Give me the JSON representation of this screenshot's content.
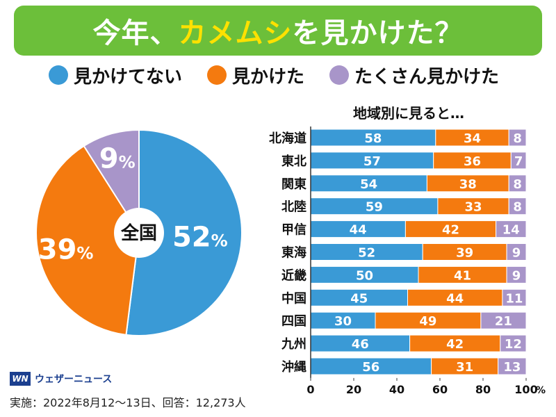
{
  "title": {
    "part1": "今年、",
    "highlight": "カメムシ",
    "part2": "を見かけた？"
  },
  "colors": {
    "not_seen": "#3a9ad6",
    "seen": "#f47a0f",
    "seen_a_lot": "#a895c9",
    "banner": "#6cbf3a",
    "highlight": "#ffe100"
  },
  "legend": [
    {
      "label": "見かけてない",
      "color": "#3a9ad6"
    },
    {
      "label": "見かけた",
      "color": "#f47a0f"
    },
    {
      "label": "たくさん見かけた",
      "color": "#a895c9"
    }
  ],
  "chart_data": [
    {
      "type": "pie",
      "center_label": "全国",
      "labels": [
        "見かけてない",
        "見かけた",
        "たくさん見かけた"
      ],
      "values": [
        52,
        39,
        9
      ],
      "value_labels": [
        "52",
        "39",
        "9"
      ],
      "unit": "%"
    },
    {
      "type": "bar",
      "orientation": "horizontal",
      "stacked": true,
      "title": "地域別に見ると…",
      "categories": [
        "北海道",
        "東北",
        "関東",
        "北陸",
        "甲信",
        "東海",
        "近畿",
        "中国",
        "四国",
        "九州",
        "沖縄"
      ],
      "series": [
        {
          "name": "見かけてない",
          "values": [
            58,
            57,
            54,
            59,
            44,
            52,
            50,
            45,
            30,
            46,
            56
          ]
        },
        {
          "name": "見かけた",
          "values": [
            34,
            36,
            38,
            33,
            42,
            39,
            41,
            44,
            49,
            42,
            31
          ]
        },
        {
          "name": "たくさん見かけた",
          "values": [
            8,
            7,
            8,
            8,
            14,
            9,
            9,
            11,
            21,
            12,
            13
          ]
        }
      ],
      "xlim": [
        0,
        100
      ],
      "x_ticks": [
        0,
        20,
        40,
        60,
        80,
        100
      ],
      "x_unit": "%"
    }
  ],
  "logo": {
    "mark": "WN",
    "text": "ウェザーニュース"
  },
  "footnote": "実施：2022年8月12～13日、回答：12,273人"
}
